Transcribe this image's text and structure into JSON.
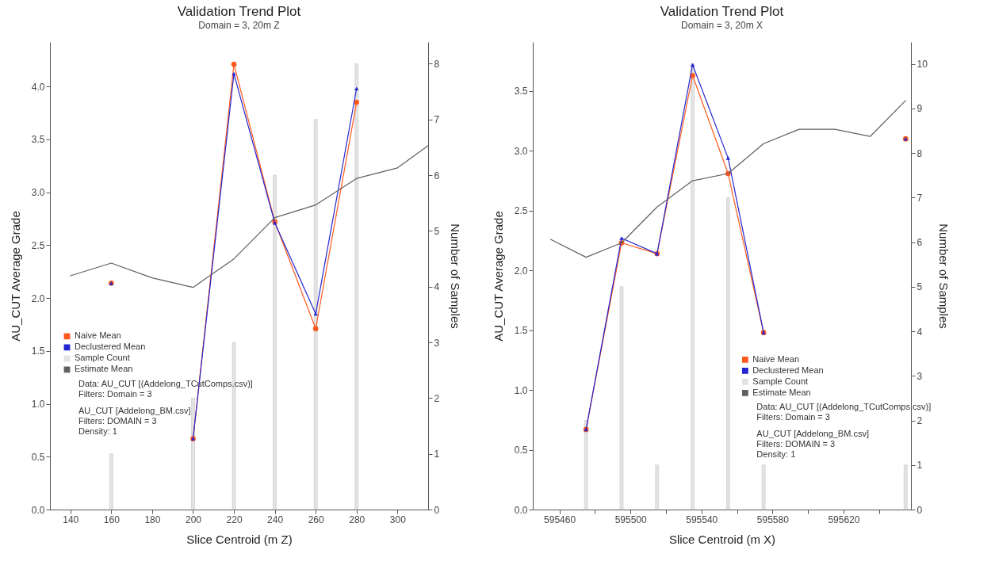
{
  "chart_data": [
    {
      "type": "line",
      "title": "Validation Trend Plot",
      "subtitle": "Domain = 3, 20m Z",
      "xlabel": "Slice Centroid (m Z)",
      "ylabel": "AU_CUT Average Grade",
      "y2label": "Number of Samples",
      "xlim": [
        130,
        315
      ],
      "xticks": [
        140,
        160,
        180,
        200,
        220,
        240,
        260,
        280,
        300
      ],
      "ylim": [
        0,
        4.42
      ],
      "yticks": [
        {
          "value": 0,
          "label": "0.0"
        },
        0.5,
        {
          "value": 1,
          "label": "1.0"
        },
        1.5,
        {
          "value": 2,
          "label": "2.0"
        },
        2.5,
        {
          "value": 3,
          "label": "3.0"
        },
        3.5,
        {
          "value": 4,
          "label": "4.0"
        }
      ],
      "y2lim": [
        0,
        8.39
      ],
      "y2ticks": [
        0,
        1,
        2,
        3,
        4,
        5,
        6,
        7,
        8
      ],
      "legend": "bottom left",
      "series": [
        {
          "name": "Naive Mean",
          "marker": "circle",
          "color": "#ff5a1f",
          "x": [
            160,
            180,
            200,
            220,
            240,
            260,
            280
          ],
          "values": [
            2.14,
            null,
            0.67,
            4.21,
            2.72,
            1.71,
            3.85
          ]
        },
        {
          "name": "Declustered Mean",
          "marker": "triangle",
          "color": "#2525d0",
          "x": [
            160,
            180,
            200,
            220,
            240,
            260,
            280
          ],
          "values": [
            2.14,
            null,
            0.67,
            4.12,
            2.71,
            1.85,
            3.98
          ]
        },
        {
          "name": "Sample Count",
          "type": "bar",
          "axis": "y2",
          "color": "#e3e3e3",
          "x": [
            160,
            200,
            220,
            240,
            260,
            280
          ],
          "values": [
            1,
            2,
            3,
            6,
            7,
            8
          ]
        },
        {
          "name": "Estimate Mean",
          "color": "#606060",
          "x": [
            140,
            160,
            180,
            200,
            220,
            240,
            260,
            280,
            300,
            315
          ],
          "values": [
            2.21,
            2.33,
            2.19,
            2.1,
            2.37,
            2.76,
            2.88,
            3.13,
            3.23,
            3.44
          ]
        }
      ],
      "annotations": [
        "Data: AU_CUT [(Addelong_TCutComps.csv)]",
        "Filters: Domain = 3",
        "AU_CUT [Addelong_BM.csv]",
        "Filters: DOMAIN = 3",
        "Density: 1"
      ]
    },
    {
      "type": "line",
      "title": "Validation Trend Plot",
      "subtitle": "Domain = 3, 20m X",
      "xlabel": "Slice Centroid (m X)",
      "ylabel": "AU_CUT Average Grade",
      "y2label": "Number of Samples",
      "xlim": [
        595445,
        595658
      ],
      "xticks": [
        595460,
        {
          "value": 595480,
          "label": null
        },
        595500,
        {
          "value": 595520,
          "label": null
        },
        595540,
        {
          "value": 595560,
          "label": null
        },
        595580,
        {
          "value": 595600,
          "label": null
        },
        595620,
        {
          "value": 595640,
          "label": null
        }
      ],
      "ylim": [
        0,
        3.91
      ],
      "yticks": [
        {
          "value": 0,
          "label": "0.0"
        },
        0.5,
        {
          "value": 1,
          "label": "1.0"
        },
        1.5,
        {
          "value": 2,
          "label": "2.0"
        },
        2.5,
        {
          "value": 3,
          "label": "3.0"
        },
        3.5
      ],
      "y2lim": [
        0,
        10.49
      ],
      "y2ticks": [
        0,
        1,
        2,
        3,
        4,
        5,
        6,
        7,
        8,
        9,
        10
      ],
      "legend": "bottom right",
      "series": [
        {
          "name": "Naive Mean",
          "marker": "circle",
          "color": "#ff5a1f",
          "x": [
            595475,
            595495,
            595515,
            595535,
            595555,
            595575,
            595595,
            595615,
            595635,
            595655
          ],
          "values": [
            0.67,
            2.23,
            2.14,
            3.63,
            2.81,
            1.48,
            null,
            null,
            null,
            3.1
          ]
        },
        {
          "name": "Declustered Mean",
          "marker": "triangle",
          "color": "#2525d0",
          "x": [
            595475,
            595495,
            595515,
            595535,
            595555,
            595575,
            595595,
            595615,
            595635,
            595655
          ],
          "values": [
            0.67,
            2.27,
            2.14,
            3.72,
            2.94,
            1.48,
            null,
            null,
            null,
            3.1
          ]
        },
        {
          "name": "Sample Count",
          "type": "bar",
          "axis": "y2",
          "color": "#e3e3e3",
          "x": [
            595475,
            595495,
            595515,
            595535,
            595555,
            595575,
            595655
          ],
          "values": [
            2,
            5,
            1,
            10,
            7,
            1,
            1
          ]
        },
        {
          "name": "Estimate Mean",
          "color": "#606060",
          "x": [
            595455,
            595475,
            595495,
            595515,
            595535,
            595555,
            595575,
            595595,
            595615,
            595635,
            595655
          ],
          "values": [
            2.26,
            2.11,
            2.23,
            2.53,
            2.75,
            2.81,
            3.06,
            3.18,
            3.18,
            3.12,
            3.42
          ]
        }
      ],
      "annotations": [
        "Data: AU_CUT [(Addelong_TCutComps.csv)]",
        "Filters: Domain = 3",
        "AU_CUT [Addelong_BM.csv]",
        "Filters: DOMAIN = 3",
        "Density: 1"
      ]
    }
  ]
}
